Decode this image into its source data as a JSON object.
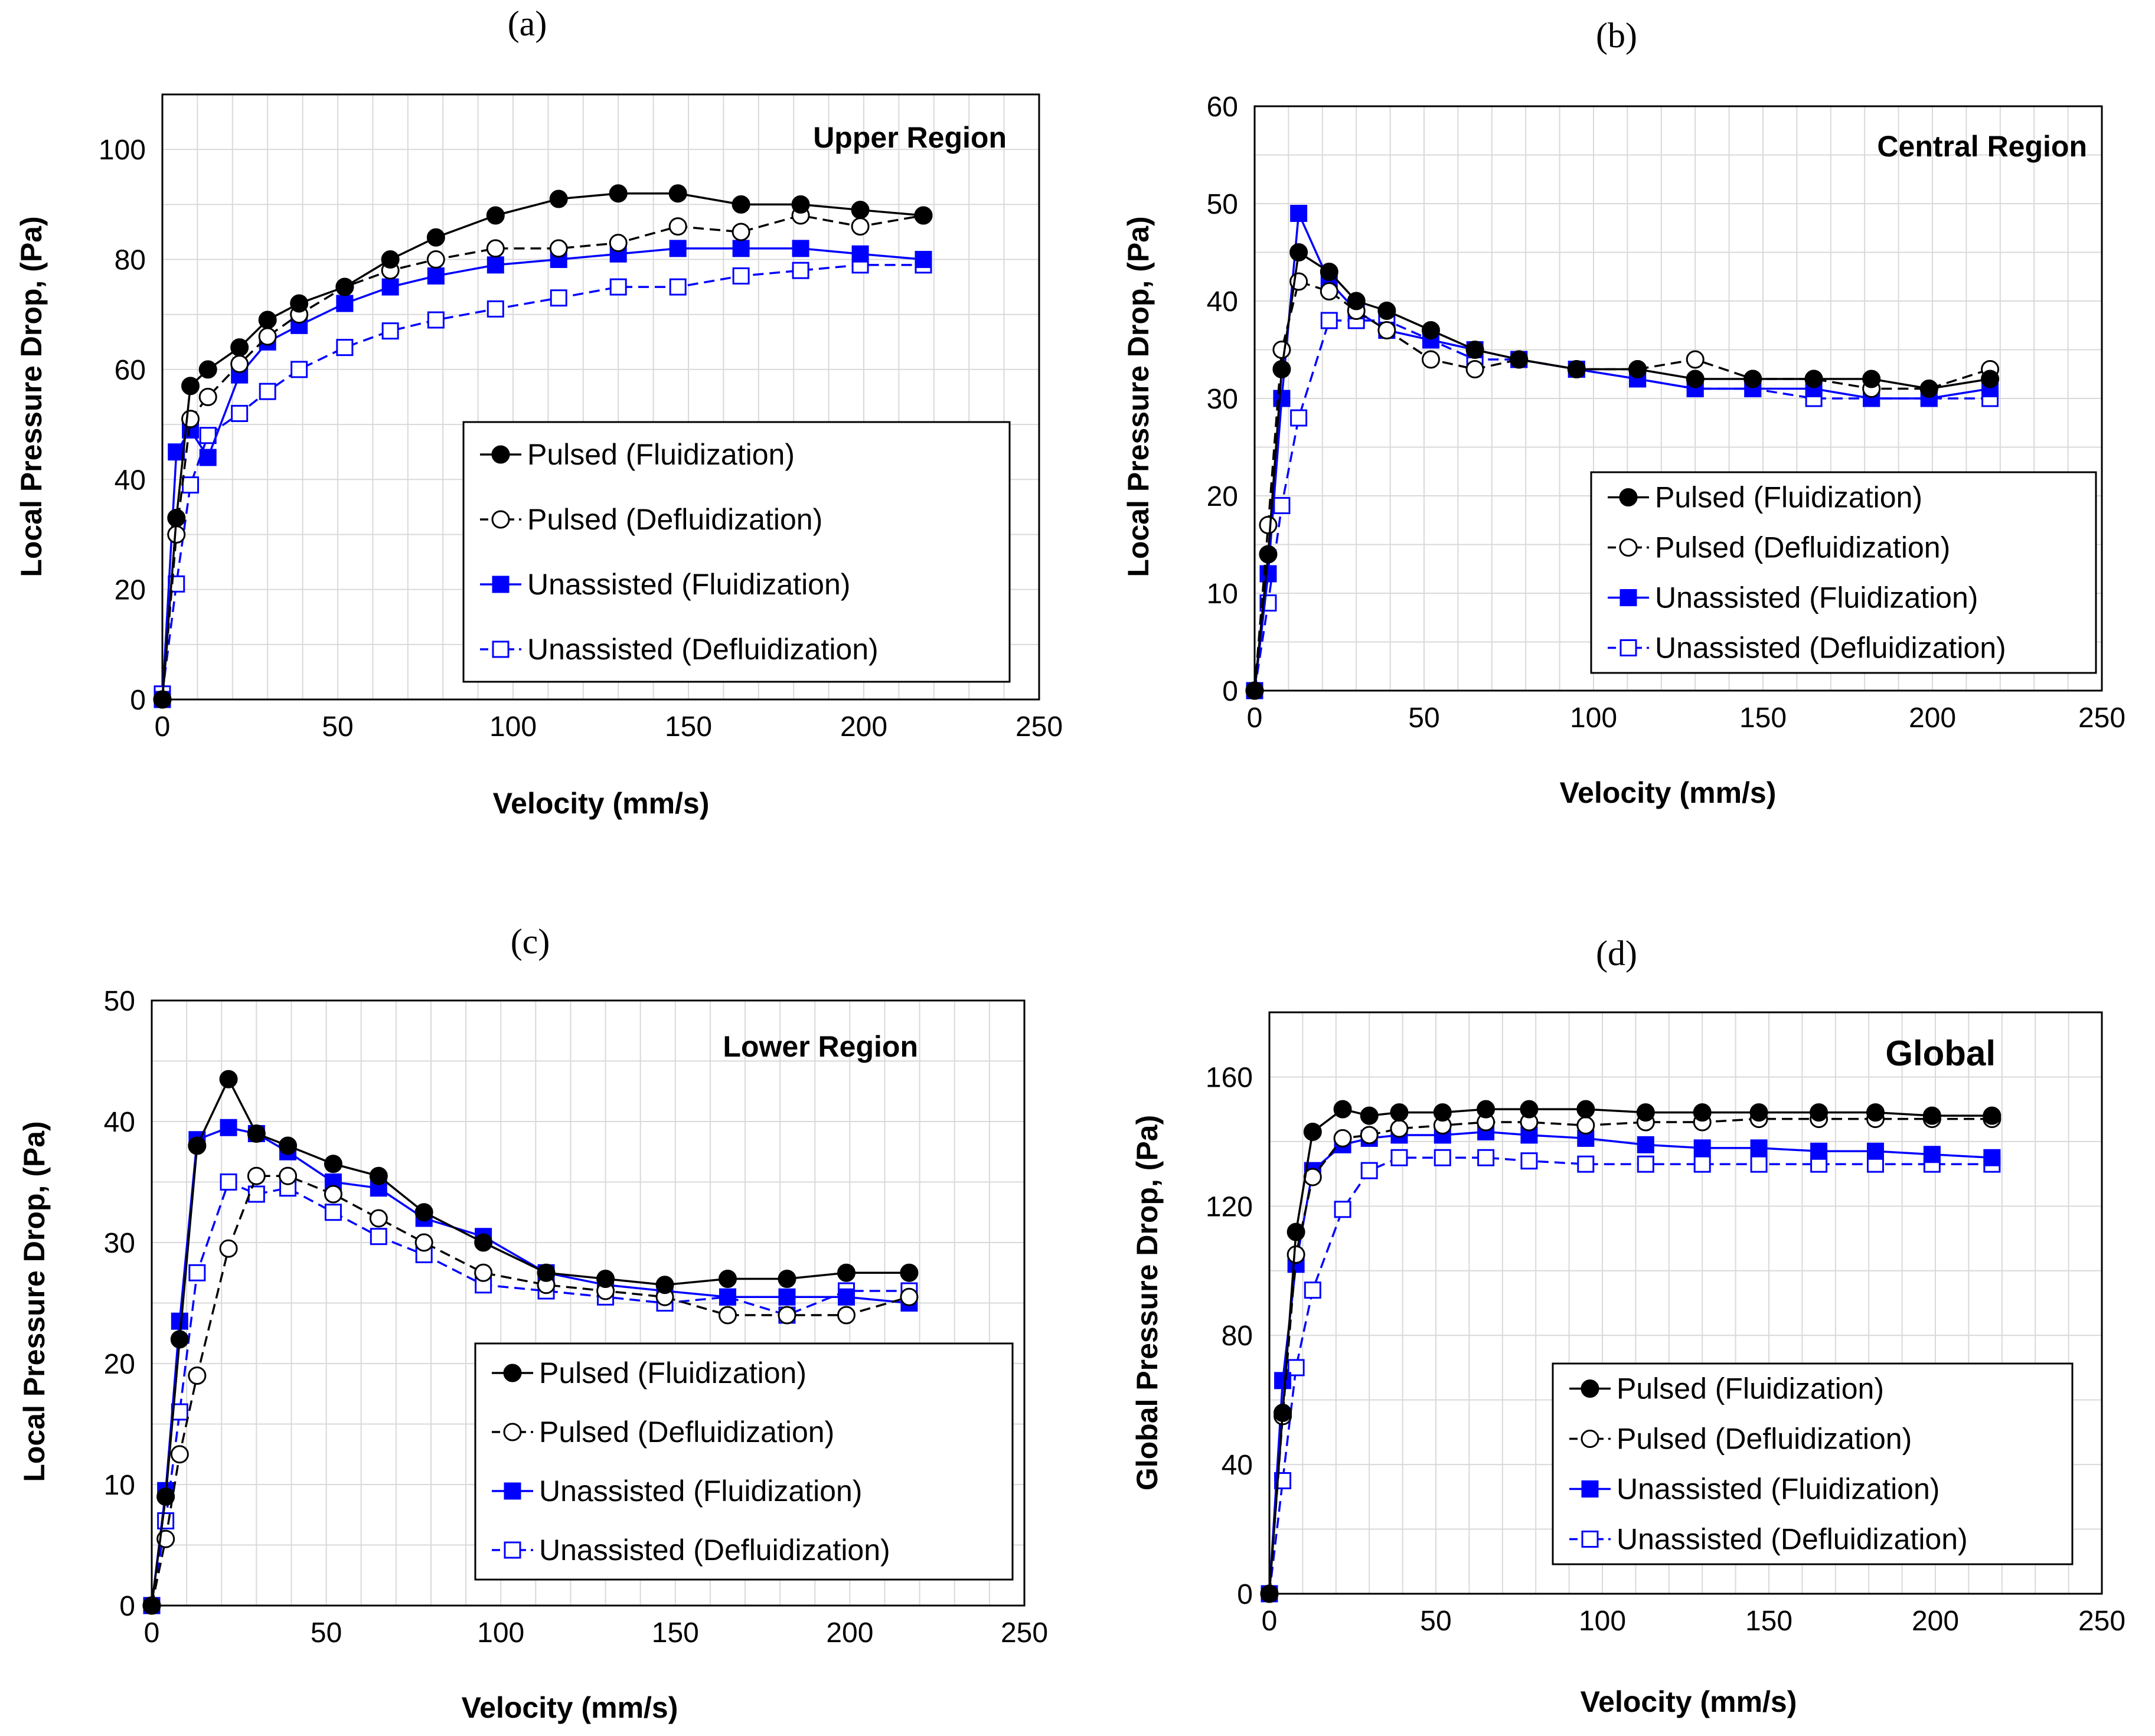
{
  "colors": {
    "black": "#000000",
    "blue": "#0000ff",
    "grid": "#d9d9d9"
  },
  "legend_labels": [
    "Pulsed (Fluidization)",
    "Pulsed (Defluidization)",
    "Unassisted (Fluidization)",
    "Unassisted (Defluidization)"
  ],
  "chart_data": [
    {
      "id": "a",
      "type": "line",
      "panel_label": "(a)",
      "title": "Upper Region",
      "xlabel": "Velocity (mm/s)",
      "ylabel": "Local Pressure Drop, (Pa)",
      "xlim": [
        0,
        250
      ],
      "ylim": [
        0,
        110
      ],
      "xticks": [
        0,
        50,
        100,
        150,
        200,
        250
      ],
      "yticks": [
        0,
        20,
        40,
        60,
        80,
        100
      ],
      "legend_position": "bottom-right",
      "series": [
        {
          "name": "Pulsed (Fluidization)",
          "color": "#000000",
          "marker": "circle",
          "filled": true,
          "dashed": false,
          "x": [
            0,
            4,
            8,
            13,
            22,
            30,
            39,
            52,
            65,
            78,
            95,
            113,
            130,
            147,
            165,
            182,
            199,
            217
          ],
          "y": [
            0,
            33,
            57,
            60,
            64,
            69,
            72,
            75,
            80,
            84,
            88,
            91,
            92,
            92,
            90,
            90,
            89,
            88
          ]
        },
        {
          "name": "Pulsed (Defluidization)",
          "color": "#000000",
          "marker": "circle",
          "filled": false,
          "dashed": true,
          "x": [
            0,
            4,
            8,
            13,
            22,
            30,
            39,
            52,
            65,
            78,
            95,
            113,
            130,
            147,
            165,
            182,
            199,
            217
          ],
          "y": [
            0,
            30,
            51,
            55,
            61,
            66,
            70,
            75,
            78,
            80,
            82,
            82,
            83,
            86,
            85,
            88,
            86,
            88
          ]
        },
        {
          "name": "Unassisted (Fluidization)",
          "color": "#0000ff",
          "marker": "square",
          "filled": true,
          "dashed": false,
          "x": [
            0,
            4,
            8,
            13,
            22,
            30,
            39,
            52,
            65,
            78,
            95,
            113,
            130,
            147,
            165,
            182,
            199,
            217
          ],
          "y": [
            0,
            45,
            49,
            44,
            59,
            65,
            68,
            72,
            75,
            77,
            79,
            80,
            81,
            82,
            82,
            82,
            81,
            80
          ]
        },
        {
          "name": "Unassisted (Defluidization)",
          "color": "#0000ff",
          "marker": "square",
          "filled": false,
          "dashed": true,
          "x": [
            0,
            4,
            8,
            13,
            22,
            30,
            39,
            52,
            65,
            78,
            95,
            113,
            130,
            147,
            165,
            182,
            199,
            217
          ],
          "y": [
            1,
            21,
            39,
            48,
            52,
            56,
            60,
            64,
            67,
            69,
            71,
            73,
            75,
            75,
            77,
            78,
            79,
            79
          ]
        }
      ]
    },
    {
      "id": "b",
      "type": "line",
      "panel_label": "(b)",
      "title": "Central Region",
      "xlabel": "Velocity (mm/s)",
      "ylabel": "Local Pressure Drop, (Pa)",
      "xlim": [
        0,
        250
      ],
      "ylim": [
        0,
        60
      ],
      "xticks": [
        0,
        50,
        100,
        150,
        200,
        250
      ],
      "yticks": [
        0,
        10,
        20,
        30,
        40,
        50,
        60
      ],
      "legend_position": "bottom-right",
      "series": [
        {
          "name": "Pulsed (Fluidization)",
          "color": "#000000",
          "marker": "circle",
          "filled": true,
          "dashed": false,
          "x": [
            0,
            4,
            8,
            13,
            22,
            30,
            39,
            52,
            65,
            78,
            95,
            113,
            130,
            147,
            165,
            182,
            199,
            217
          ],
          "y": [
            0,
            14,
            33,
            45,
            43,
            40,
            39,
            37,
            35,
            34,
            33,
            33,
            32,
            32,
            32,
            32,
            31,
            32
          ]
        },
        {
          "name": "Pulsed (Defluidization)",
          "color": "#000000",
          "marker": "circle",
          "filled": false,
          "dashed": true,
          "x": [
            0,
            4,
            8,
            13,
            22,
            30,
            39,
            52,
            65,
            78,
            95,
            113,
            130,
            147,
            165,
            182,
            199,
            217
          ],
          "y": [
            0,
            17,
            35,
            42,
            41,
            39,
            37,
            34,
            33,
            34,
            33,
            33,
            34,
            32,
            32,
            31,
            31,
            33
          ]
        },
        {
          "name": "Unassisted (Fluidization)",
          "color": "#0000ff",
          "marker": "square",
          "filled": true,
          "dashed": false,
          "x": [
            0,
            4,
            8,
            13,
            22,
            30,
            39,
            52,
            65,
            78,
            95,
            113,
            130,
            147,
            165,
            182,
            199,
            217
          ],
          "y": [
            0,
            12,
            30,
            49,
            42,
            39,
            37,
            36,
            35,
            34,
            33,
            32,
            31,
            31,
            31,
            30,
            30,
            31
          ]
        },
        {
          "name": "Unassisted (Defluidization)",
          "color": "#0000ff",
          "marker": "square",
          "filled": false,
          "dashed": true,
          "x": [
            0,
            4,
            8,
            13,
            22,
            30,
            39,
            52,
            65,
            78,
            95,
            113,
            130,
            147,
            165,
            182,
            199,
            217
          ],
          "y": [
            0,
            9,
            19,
            28,
            38,
            38,
            38,
            36,
            34,
            34,
            33,
            32,
            31,
            31,
            30,
            30,
            30,
            30
          ]
        }
      ]
    },
    {
      "id": "c",
      "type": "line",
      "panel_label": "(c)",
      "title": "Lower Region",
      "xlabel": "Velocity (mm/s)",
      "ylabel": "Local Pressure Drop, (Pa)",
      "xlim": [
        0,
        250
      ],
      "ylim": [
        0,
        50
      ],
      "xticks": [
        0,
        50,
        100,
        150,
        200,
        250
      ],
      "yticks": [
        0,
        10,
        20,
        30,
        40,
        50
      ],
      "legend_position": "bottom-right",
      "series": [
        {
          "name": "Pulsed (Fluidization)",
          "color": "#000000",
          "marker": "circle",
          "filled": true,
          "dashed": false,
          "x": [
            0,
            4,
            8,
            13,
            22,
            30,
            39,
            52,
            65,
            78,
            95,
            113,
            130,
            147,
            165,
            182,
            199,
            217
          ],
          "y": [
            0,
            9,
            22,
            38,
            43.5,
            39,
            38,
            36.5,
            35.5,
            32.5,
            30,
            27.5,
            27,
            26.5,
            27,
            27,
            27.5,
            27.5
          ]
        },
        {
          "name": "Pulsed (Defluidization)",
          "color": "#000000",
          "marker": "circle",
          "filled": false,
          "dashed": true,
          "x": [
            0,
            4,
            8,
            13,
            22,
            30,
            39,
            52,
            65,
            78,
            95,
            113,
            130,
            147,
            165,
            182,
            199,
            217
          ],
          "y": [
            0,
            5.5,
            12.5,
            19,
            29.5,
            35.5,
            35.5,
            34,
            32,
            30,
            27.5,
            26.5,
            26,
            25.5,
            24,
            24,
            24,
            25.5
          ]
        },
        {
          "name": "Unassisted (Fluidization)",
          "color": "#0000ff",
          "marker": "square",
          "filled": true,
          "dashed": false,
          "x": [
            0,
            4,
            8,
            13,
            22,
            30,
            39,
            52,
            65,
            78,
            95,
            113,
            130,
            147,
            165,
            182,
            199,
            217
          ],
          "y": [
            0,
            9.5,
            23.5,
            38.5,
            39.5,
            39,
            37.5,
            35,
            34.5,
            32,
            30.5,
            27.5,
            26.5,
            26,
            25.5,
            25.5,
            25.5,
            25
          ]
        },
        {
          "name": "Unassisted (Defluidization)",
          "color": "#0000ff",
          "marker": "square",
          "filled": false,
          "dashed": true,
          "x": [
            0,
            4,
            8,
            13,
            22,
            30,
            39,
            52,
            65,
            78,
            95,
            113,
            130,
            147,
            165,
            182,
            199,
            217
          ],
          "y": [
            0,
            7,
            16,
            27.5,
            35,
            34,
            34.5,
            32.5,
            30.5,
            29,
            26.5,
            26,
            25.5,
            25,
            25.5,
            24,
            26,
            26
          ]
        }
      ]
    },
    {
      "id": "d",
      "type": "line",
      "panel_label": "(d)",
      "title": "Global",
      "xlabel": "Velocity (mm/s)",
      "ylabel": "Global Pressure Drop, (Pa)",
      "xlim": [
        0,
        250
      ],
      "ylim": [
        0,
        180
      ],
      "xticks": [
        0,
        50,
        100,
        150,
        200,
        250
      ],
      "yticks": [
        0,
        40,
        80,
        120,
        160
      ],
      "legend_position": "bottom-right",
      "series": [
        {
          "name": "Pulsed (Fluidization)",
          "color": "#000000",
          "marker": "circle",
          "filled": true,
          "dashed": false,
          "x": [
            0,
            4,
            8,
            13,
            22,
            30,
            39,
            52,
            65,
            78,
            95,
            113,
            130,
            147,
            165,
            182,
            199,
            217
          ],
          "y": [
            0,
            56,
            112,
            143,
            150,
            148,
            149,
            149,
            150,
            150,
            150,
            149,
            149,
            149,
            149,
            149,
            148,
            148
          ]
        },
        {
          "name": "Pulsed (Defluidization)",
          "color": "#000000",
          "marker": "circle",
          "filled": false,
          "dashed": true,
          "x": [
            0,
            4,
            8,
            13,
            22,
            30,
            39,
            52,
            65,
            78,
            95,
            113,
            130,
            147,
            165,
            182,
            199,
            217
          ],
          "y": [
            0,
            55,
            105,
            129,
            141,
            142,
            144,
            145,
            146,
            146,
            145,
            146,
            146,
            147,
            147,
            147,
            147,
            147
          ]
        },
        {
          "name": "Unassisted (Fluidization)",
          "color": "#0000ff",
          "marker": "square",
          "filled": true,
          "dashed": false,
          "x": [
            0,
            4,
            8,
            13,
            22,
            30,
            39,
            52,
            65,
            78,
            95,
            113,
            130,
            147,
            165,
            182,
            199,
            217
          ],
          "y": [
            0,
            66,
            102,
            131,
            139,
            141,
            142,
            142,
            143,
            142,
            141,
            139,
            138,
            138,
            137,
            137,
            136,
            135
          ]
        },
        {
          "name": "Unassisted (Defluidization)",
          "color": "#0000ff",
          "marker": "square",
          "filled": false,
          "dashed": true,
          "x": [
            0,
            4,
            8,
            13,
            22,
            30,
            39,
            52,
            65,
            78,
            95,
            113,
            130,
            147,
            165,
            182,
            199,
            217
          ],
          "y": [
            0,
            35,
            70,
            94,
            119,
            131,
            135,
            135,
            135,
            134,
            133,
            133,
            133,
            133,
            133,
            133,
            133,
            133
          ]
        }
      ]
    }
  ]
}
